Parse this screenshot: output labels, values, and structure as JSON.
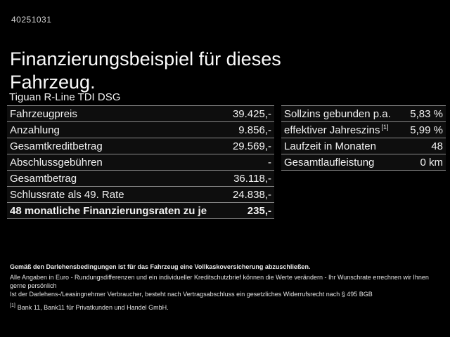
{
  "page": {
    "id_number": "40251031",
    "title": "Finanzierungsbeispiel für dieses Fahrzeug.",
    "subtitle": "Tiguan R-Line TDI DSG"
  },
  "finance_table": {
    "rows": [
      {
        "label": "Fahrzeugpreis",
        "value": "39.425,-"
      },
      {
        "label": "Anzahlung",
        "value": "9.856,-"
      },
      {
        "label": "Gesamtkreditbetrag",
        "value": "29.569,-"
      },
      {
        "label": "Abschlussgebühren",
        "value": "-"
      },
      {
        "label": "Gesamtbetrag",
        "value": "36.118,-"
      },
      {
        "label": "Schlussrate als 49. Rate",
        "value": "24.838,-"
      },
      {
        "label": "48 monatliche Finanzierungsraten zu je",
        "value": "235,-"
      }
    ]
  },
  "conditions_table": {
    "rows": [
      {
        "label": "Sollzins gebunden p.a.",
        "value": "5,83 %"
      },
      {
        "label": "effektiver Jahreszins",
        "footnote_marker": "[1]",
        "value": "5,99 %"
      },
      {
        "label": "Laufzeit in Monaten",
        "value": "48"
      },
      {
        "label": "Gesamtlaufleistung",
        "value": "0 km"
      }
    ]
  },
  "fine_print": {
    "line1": "Gemäß den Darlehensbedingungen ist für das Fahrzeug eine Vollkaskoversicherung abzuschließen.",
    "line2": "Alle Angaben in Euro - Rundungsdifferenzen und ein individueller Kreditschutzbrief können die Werte verändern - Ihr Wunschrate errechnen wir Ihnen gerne persönlich",
    "line3": "Ist der Darlehens-/Leasingnehmer Verbraucher, besteht nach Vertragsabschluss ein gesetzliches Widerrufsrecht nach § 495 BGB",
    "footnote_marker": "[1]",
    "footnote": "Bank 11, Bank11 für Privatkunden und Handel GmbH."
  },
  "colors": {
    "background": "#000000",
    "text": "#f2f2f2",
    "divider": "#8a8a8a",
    "row_background": "#0e0e0e"
  }
}
